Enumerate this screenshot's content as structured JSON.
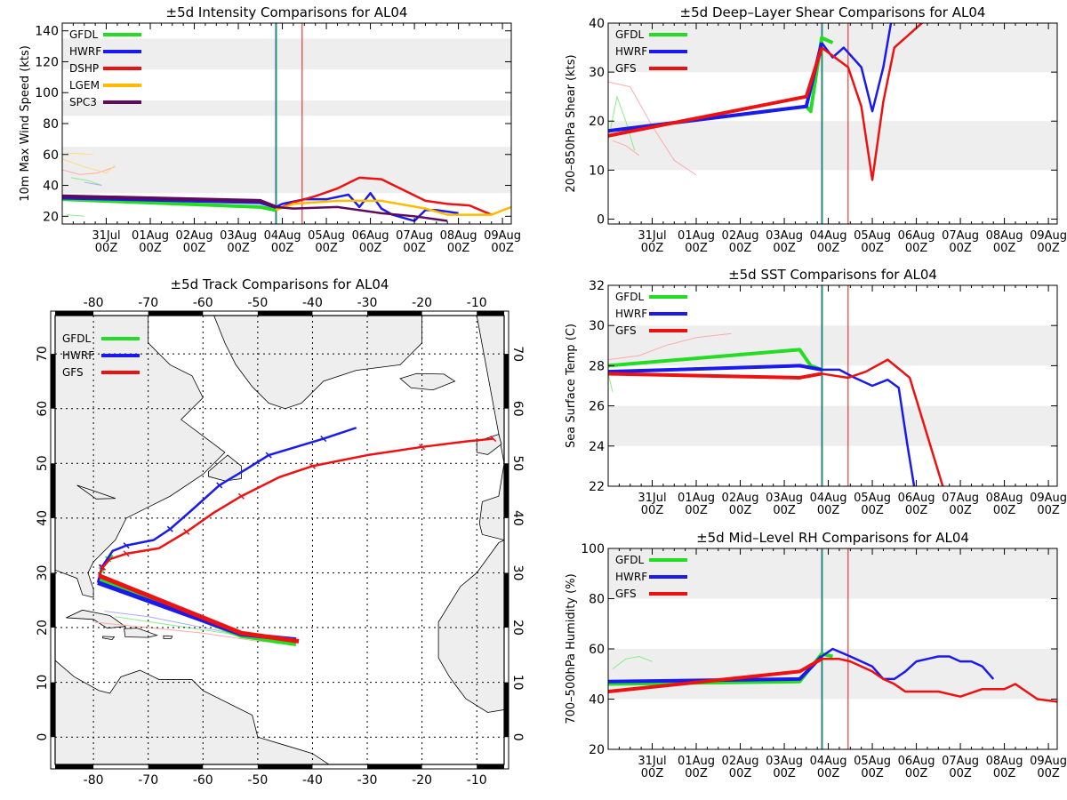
{
  "colors": {
    "GFDL": "#22dd22",
    "HWRF": "#1a1aee",
    "DSHP": "#ee1111",
    "LGEM": "#ffbb00",
    "SPC3": "#5e0a5e",
    "GFS": "#ee1111",
    "band": "#eeeeee",
    "land": "#eeeeee"
  },
  "time_ticks": [
    {
      "day": "31Jul",
      "hour": "00Z"
    },
    {
      "day": "01Aug",
      "hour": "00Z"
    },
    {
      "day": "02Aug",
      "hour": "00Z"
    },
    {
      "day": "03Aug",
      "hour": "00Z"
    },
    {
      "day": "04Aug",
      "hour": "00Z"
    },
    {
      "day": "05Aug",
      "hour": "00Z"
    },
    {
      "day": "06Aug",
      "hour": "00Z"
    },
    {
      "day": "07Aug",
      "hour": "00Z"
    },
    {
      "day": "08Aug",
      "hour": "00Z"
    },
    {
      "day": "09Aug",
      "hour": "00Z"
    }
  ],
  "chart_data": [
    {
      "id": "intensity",
      "type": "line",
      "title": "±5d Intensity Comparisons for AL04",
      "ylabel": "10m Max Wind Speed (kts)",
      "xlim": [
        -1.0,
        9.2
      ],
      "ylim": [
        15,
        145
      ],
      "yticks": [
        20,
        40,
        60,
        80,
        100,
        120,
        140
      ],
      "bands": [
        [
          35,
          65
        ],
        [
          85,
          95
        ],
        [
          115,
          135
        ]
      ],
      "vlines": [
        {
          "x": 3.85,
          "color": "#1a1aee"
        },
        {
          "x": 3.87,
          "color": "#22dd22"
        },
        {
          "x": 4.45,
          "color": "#ee1111"
        }
      ],
      "legend": [
        "GFDL",
        "HWRF",
        "DSHP",
        "LGEM",
        "SPC3"
      ],
      "series": [
        {
          "name": "GFDL",
          "x": [
            -1.0,
            3.5,
            3.85
          ],
          "y": [
            31,
            26,
            24
          ],
          "width": 4
        },
        {
          "name": "HWRF",
          "x": [
            -1.0,
            3.5,
            3.85,
            4.0,
            4.5,
            5.0,
            5.5,
            5.75,
            6.0,
            6.25,
            6.5,
            7.0,
            7.25,
            7.5,
            8.0
          ],
          "y": [
            32,
            29,
            26,
            28,
            31,
            31,
            34,
            26,
            35,
            25,
            21,
            17,
            24,
            24,
            22
          ],
          "width": 4,
          "width_after": 2.5,
          "split": 3.9
        },
        {
          "name": "DSHP",
          "x": [
            3.85,
            4.25,
            4.75,
            5.25,
            5.75,
            6.25,
            6.75,
            7.25,
            7.75,
            8.25,
            8.75
          ],
          "y": [
            24,
            29,
            33,
            38,
            45,
            44,
            37,
            30,
            28,
            27,
            21
          ],
          "width": 2.5
        },
        {
          "name": "LGEM",
          "x": [
            3.85,
            4.25,
            5.25,
            6.25,
            7.25,
            7.75,
            8.25,
            8.75,
            9.2
          ],
          "y": [
            24,
            28,
            30,
            30,
            25,
            21,
            21,
            21,
            26
          ],
          "width": 2.5
        },
        {
          "name": "SPC3",
          "x": [
            -1.0,
            3.5,
            3.85,
            4.25,
            5.25,
            6.25,
            7.0,
            7.75
          ],
          "y": [
            33,
            30,
            26,
            25,
            26,
            22,
            20,
            17
          ],
          "width": 4,
          "width_after": 2.5,
          "split": 3.9
        }
      ],
      "faint": [
        {
          "color": "#ffaaaa",
          "x": [
            -1.0,
            -0.6,
            -0.2,
            0.2
          ],
          "y": [
            50,
            47,
            48,
            52
          ]
        },
        {
          "color": "#ffdd77",
          "x": [
            -1.0,
            -0.5,
            0.0,
            0.2
          ],
          "y": [
            57,
            52,
            48,
            53
          ]
        },
        {
          "color": "#ffdd77",
          "x": [
            -0.9,
            -0.3
          ],
          "y": [
            61,
            60
          ]
        },
        {
          "color": "#88ee88",
          "x": [
            -0.9,
            -0.5
          ],
          "y": [
            21,
            20
          ]
        },
        {
          "color": "#88ee88",
          "x": [
            -0.8,
            -0.4,
            -0.1
          ],
          "y": [
            45,
            43,
            40
          ]
        },
        {
          "color": "#aaaaff",
          "x": [
            -0.5,
            -0.1
          ],
          "y": [
            42,
            40
          ]
        }
      ]
    },
    {
      "id": "shear",
      "type": "line",
      "title": "±5d Deep–Layer Shear Comparisons for AL04",
      "ylabel": "200–850hPa Shear (kts)",
      "xlim": [
        -1.0,
        9.2
      ],
      "ylim": [
        -1,
        40
      ],
      "yticks": [
        0,
        10,
        20,
        30,
        40
      ],
      "bands": [
        [
          10,
          20
        ],
        [
          30,
          40
        ]
      ],
      "vlines": [
        {
          "x": 3.85,
          "color": "#1a1aee"
        },
        {
          "x": 3.87,
          "color": "#22dd22"
        },
        {
          "x": 4.45,
          "color": "#ee1111"
        }
      ],
      "legend": [
        "GFDL",
        "HWRF",
        "GFS"
      ],
      "series": [
        {
          "name": "GFDL",
          "x": [
            -1.0,
            3.5,
            3.6,
            3.85,
            4.1
          ],
          "y": [
            18,
            23,
            22,
            37,
            36
          ],
          "width": 4
        },
        {
          "name": "HWRF",
          "x": [
            -1.0,
            3.5,
            3.85,
            4.1,
            4.35,
            4.75,
            5.0,
            5.25,
            5.5,
            5.75
          ],
          "y": [
            18,
            23,
            36,
            33,
            35,
            31,
            22,
            31,
            44,
            50
          ],
          "width": 4,
          "width_after": 2.5,
          "split": 3.9
        },
        {
          "name": "GFS",
          "x": [
            -1.0,
            3.5,
            3.85,
            4.45,
            4.75,
            5.0,
            5.25,
            5.5,
            6.5
          ],
          "y": [
            17,
            25,
            35,
            31,
            23,
            8,
            24,
            35,
            43
          ],
          "width": 4,
          "width_after": 2.5,
          "split": 3.9
        }
      ],
      "faint": [
        {
          "color": "#88ee88",
          "x": [
            -1.0,
            -0.8,
            -0.6,
            -0.4
          ],
          "y": [
            16,
            25,
            20,
            14
          ]
        },
        {
          "color": "#ffaaaa",
          "x": [
            -1.0,
            -0.5,
            0.0,
            0.5,
            1.0
          ],
          "y": [
            28,
            27,
            19,
            12,
            9
          ]
        },
        {
          "color": "#ffaaaa",
          "x": [
            -0.9,
            -0.6,
            -0.3
          ],
          "y": [
            16,
            15,
            13
          ]
        }
      ]
    },
    {
      "id": "sst",
      "type": "line",
      "title": "±5d SST Comparisons for AL04",
      "ylabel": "Sea Surface Temp (C)",
      "xlim": [
        -1.0,
        9.2
      ],
      "ylim": [
        22,
        32
      ],
      "yticks": [
        22,
        24,
        26,
        28,
        30,
        32
      ],
      "bands": [
        [
          24,
          26
        ],
        [
          28,
          30
        ]
      ],
      "vlines": [
        {
          "x": 3.85,
          "color": "#1a1aee"
        },
        {
          "x": 3.87,
          "color": "#22dd22"
        },
        {
          "x": 4.45,
          "color": "#ee1111"
        }
      ],
      "legend": [
        "GFDL",
        "HWRF",
        "GFS"
      ],
      "series": [
        {
          "name": "GFDL",
          "x": [
            -1.0,
            3.35,
            3.6,
            3.85
          ],
          "y": [
            28.0,
            28.8,
            28.0,
            27.8
          ],
          "width": 4
        },
        {
          "name": "HWRF",
          "x": [
            -1.0,
            3.35,
            3.85,
            4.25,
            4.6,
            5.0,
            5.35,
            5.6,
            5.8,
            5.95
          ],
          "y": [
            27.7,
            28.0,
            27.8,
            27.8,
            27.4,
            27.0,
            27.3,
            26.9,
            24.0,
            22.0
          ],
          "width": 4,
          "width_after": 2.5,
          "split": 3.9
        },
        {
          "name": "GFS",
          "x": [
            -1.0,
            3.35,
            3.85,
            4.45,
            4.85,
            5.35,
            5.85,
            6.6
          ],
          "y": [
            27.6,
            27.4,
            27.6,
            27.4,
            27.7,
            28.3,
            27.4,
            22.0
          ],
          "width": 4,
          "width_after": 2.5,
          "split": 3.9
        }
      ],
      "faint": [
        {
          "color": "#ffaaaa",
          "x": [
            -1.0,
            -0.3,
            0.3,
            1.0,
            1.8
          ],
          "y": [
            28.3,
            28.5,
            29.0,
            29.4,
            29.6
          ]
        },
        {
          "color": "#88ee88",
          "x": [
            -1.0,
            -0.9
          ],
          "y": [
            27.6,
            26.7
          ]
        }
      ]
    },
    {
      "id": "rh",
      "type": "line",
      "title": "±5d Mid–Level RH Comparisons for AL04",
      "ylabel": "700–500hPa Humidity (%)",
      "xlim": [
        -1.0,
        9.2
      ],
      "ylim": [
        20,
        100
      ],
      "yticks": [
        20,
        40,
        60,
        80,
        100
      ],
      "bands": [
        [
          40,
          60
        ],
        [
          80,
          100
        ]
      ],
      "vlines": [
        {
          "x": 3.85,
          "color": "#1a1aee"
        },
        {
          "x": 3.87,
          "color": "#22dd22"
        },
        {
          "x": 4.45,
          "color": "#ee1111"
        }
      ],
      "legend": [
        "GFDL",
        "HWRF",
        "GFS"
      ],
      "series": [
        {
          "name": "GFDL",
          "x": [
            -1.0,
            3.35,
            3.85,
            4.1
          ],
          "y": [
            46,
            47,
            58,
            57
          ],
          "width": 4
        },
        {
          "name": "HWRF",
          "x": [
            -1.0,
            3.35,
            3.85,
            4.1,
            4.5,
            5.0,
            5.25,
            5.5,
            5.75,
            6.0,
            6.25,
            6.5,
            6.75,
            7.0,
            7.25,
            7.5,
            7.75
          ],
          "y": [
            47,
            48,
            57,
            60,
            57,
            53,
            48,
            48,
            51,
            55,
            56,
            57,
            57,
            55,
            55,
            53,
            48
          ],
          "width": 4,
          "width_after": 2.5,
          "split": 3.9
        },
        {
          "name": "GFS",
          "x": [
            -1.0,
            3.35,
            3.85,
            4.25,
            4.5,
            4.75,
            5.0,
            5.25,
            5.5,
            5.75,
            6.0,
            6.5,
            7.0,
            7.5,
            8.0,
            8.25,
            8.75,
            9.2
          ],
          "y": [
            43,
            51,
            56,
            56,
            55,
            53,
            51,
            48,
            46,
            43,
            43,
            43,
            41,
            44,
            44,
            46,
            40,
            39
          ],
          "width": 4,
          "width_after": 2.5,
          "split": 3.9
        }
      ],
      "faint": [
        {
          "color": "#88ee88",
          "x": [
            -0.9,
            -0.6,
            -0.3,
            0.0
          ],
          "y": [
            52,
            56,
            57,
            55
          ]
        },
        {
          "color": "#ffaaaa",
          "x": [
            -0.5,
            0.0,
            0.5
          ],
          "y": [
            44,
            45,
            46
          ]
        }
      ]
    },
    {
      "id": "track",
      "type": "map",
      "title": "±5d Track Comparisons for AL04",
      "xlim": [
        -87,
        -5
      ],
      "ylim": [
        -5,
        77
      ],
      "lon_ticks": [
        -80,
        -70,
        -60,
        -50,
        -40,
        -30,
        -20,
        -10
      ],
      "lat_ticks": [
        0,
        10,
        20,
        30,
        40,
        50,
        60,
        70
      ],
      "legend": [
        "GFDL",
        "HWRF",
        "GFS"
      ],
      "tracks": [
        {
          "name": "GFDL",
          "lon": [
            -43,
            -53,
            -79,
            -78.5,
            -78,
            -77.3,
            -76.5
          ],
          "lat": [
            17.0,
            18.5,
            29.0,
            30.5,
            31.5,
            32.5,
            33.2
          ],
          "width": 4
        },
        {
          "name": "HWRF",
          "lon": [
            -43,
            -53,
            -79.2,
            -78.5,
            -76.5,
            -74,
            -69,
            -66,
            -62,
            -57,
            -52,
            -48,
            -43,
            -38,
            -32
          ],
          "lat": [
            17.8,
            18.8,
            28.2,
            31.0,
            34.0,
            35.0,
            36.0,
            38.0,
            41.5,
            46.0,
            49.0,
            51.5,
            53.0,
            54.5,
            56.5
          ],
          "width": 3
        },
        {
          "name": "GFS",
          "lon": [
            -42.5,
            -53,
            -79,
            -78.3,
            -77,
            -74,
            -68,
            -63,
            -58,
            -53,
            -46,
            -40,
            -30,
            -20,
            -12,
            -7
          ],
          "lat": [
            17.5,
            19.0,
            29.5,
            31.0,
            32.5,
            33.5,
            34.5,
            37.5,
            41.0,
            44.0,
            47.5,
            49.5,
            51.5,
            53.0,
            54.0,
            54.5
          ],
          "width": 3
        }
      ],
      "track_widths": {
        "hwrf_first": 4.5,
        "gfs_first": 4.5
      },
      "faint_tracks": [
        {
          "color": "#aaaaff",
          "lon": [
            -78,
            -70,
            -60,
            -50,
            -43
          ],
          "lat": [
            23,
            22,
            20,
            18,
            17
          ]
        },
        {
          "color": "#ffaaaa",
          "lon": [
            -80,
            -70,
            -60,
            -50,
            -43
          ],
          "lat": [
            21,
            20,
            19,
            17.5,
            17
          ]
        },
        {
          "color": "#88ee88",
          "lon": [
            -76,
            -66,
            -56,
            -46
          ],
          "lat": [
            22,
            20.5,
            19,
            17
          ]
        }
      ]
    }
  ]
}
